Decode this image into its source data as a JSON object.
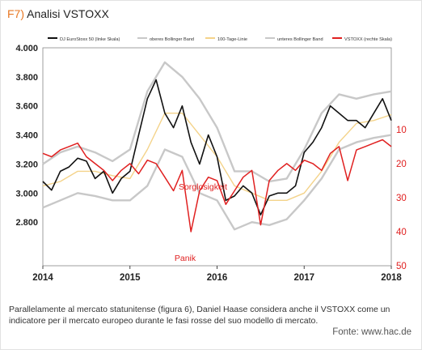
{
  "header": {
    "label": "F7)",
    "title": "Analisi VSTOXX"
  },
  "caption": "Parallelamente al mercato statunitense (figura 6), Daniel Haase considera anche il VSTOXX come un indicatore per il mercato europeo durante le fasi rosse del suo modello di mercato.",
  "source": "Fonte: www.hac.de",
  "colors": {
    "index": "#111111",
    "bollinger": "#c8c8c8",
    "ma": "#f4d38a",
    "vstoxx": "#e02020",
    "left_axis_text": "#222222",
    "right_axis_text": "#e02020"
  },
  "chart_data": {
    "type": "line",
    "legend": [
      "DJ EuroStoxx 50 (linke Skala)",
      "oberes Bollinger Band",
      "100-Tage-Linie",
      "unteres Bollinger Band",
      "VSTOXX (rechte Skala)"
    ],
    "x_ticks": [
      "2014",
      "2015",
      "2016",
      "2017",
      "2018"
    ],
    "xlim": [
      2014,
      2018
    ],
    "left_axis": {
      "ticks": [
        "4.000",
        "3.800",
        "3.600",
        "3.400",
        "3.200",
        "3.000",
        "2.800"
      ],
      "ylim": [
        2500,
        4000
      ]
    },
    "right_axis": {
      "ticks": [
        "10",
        "20",
        "30",
        "40",
        "50"
      ],
      "ylim": [
        -14,
        50
      ],
      "inverted": true
    },
    "annotations": [
      "Sorglosigkeit",
      "Panik"
    ],
    "series": [
      {
        "name": "DJ EuroStoxx 50 (linke Skala)",
        "axis": "left",
        "x": [
          2014.0,
          2014.1,
          2014.2,
          2014.3,
          2014.4,
          2014.5,
          2014.6,
          2014.7,
          2014.8,
          2014.9,
          2015.0,
          2015.1,
          2015.2,
          2015.3,
          2015.4,
          2015.5,
          2015.6,
          2015.7,
          2015.8,
          2015.9,
          2016.0,
          2016.1,
          2016.2,
          2016.3,
          2016.4,
          2016.5,
          2016.6,
          2016.7,
          2016.8,
          2016.9,
          2017.0,
          2017.1,
          2017.2,
          2017.3,
          2017.4,
          2017.5,
          2017.6,
          2017.7,
          2017.8,
          2017.9,
          2018.0
        ],
        "y": [
          3080,
          3020,
          3150,
          3180,
          3240,
          3220,
          3100,
          3150,
          3000,
          3100,
          3150,
          3400,
          3650,
          3780,
          3550,
          3450,
          3600,
          3350,
          3200,
          3400,
          3250,
          2950,
          2980,
          3050,
          3000,
          2850,
          2980,
          3000,
          3000,
          3050,
          3280,
          3350,
          3450,
          3600,
          3550,
          3500,
          3500,
          3450,
          3550,
          3650,
          3500
        ]
      },
      {
        "name": "oberes Bollinger Band",
        "axis": "left",
        "x": [
          2014.0,
          2014.2,
          2014.4,
          2014.6,
          2014.8,
          2015.0,
          2015.2,
          2015.4,
          2015.6,
          2015.8,
          2016.0,
          2016.2,
          2016.4,
          2016.6,
          2016.8,
          2017.0,
          2017.2,
          2017.4,
          2017.6,
          2017.8,
          2018.0
        ],
        "y": [
          3200,
          3280,
          3320,
          3280,
          3220,
          3300,
          3700,
          3900,
          3800,
          3650,
          3450,
          3150,
          3150,
          3080,
          3100,
          3300,
          3550,
          3680,
          3650,
          3680,
          3700
        ]
      },
      {
        "name": "100-Tage-Linie",
        "axis": "left",
        "x": [
          2014.0,
          2014.2,
          2014.4,
          2014.6,
          2014.8,
          2015.0,
          2015.2,
          2015.4,
          2015.6,
          2015.8,
          2016.0,
          2016.2,
          2016.4,
          2016.6,
          2016.8,
          2017.0,
          2017.2,
          2017.4,
          2017.6,
          2017.8,
          2018.0
        ],
        "y": [
          3050,
          3080,
          3150,
          3150,
          3120,
          3100,
          3300,
          3550,
          3550,
          3400,
          3250,
          3050,
          3000,
          2950,
          2950,
          3000,
          3150,
          3350,
          3480,
          3500,
          3540
        ]
      },
      {
        "name": "unteres Bollinger Band",
        "axis": "left",
        "x": [
          2014.0,
          2014.2,
          2014.4,
          2014.6,
          2014.8,
          2015.0,
          2015.2,
          2015.4,
          2015.6,
          2015.8,
          2016.0,
          2016.2,
          2016.4,
          2016.6,
          2016.8,
          2017.0,
          2017.2,
          2017.4,
          2017.6,
          2017.8,
          2018.0
        ],
        "y": [
          2900,
          2950,
          3000,
          2980,
          2950,
          2950,
          3050,
          3300,
          3250,
          3000,
          2950,
          2750,
          2800,
          2780,
          2820,
          2950,
          3100,
          3300,
          3350,
          3380,
          3400
        ]
      },
      {
        "name": "VSTOXX (rechte Skala)",
        "axis": "right",
        "x": [
          2014.0,
          2014.1,
          2014.2,
          2014.3,
          2014.4,
          2014.5,
          2014.6,
          2014.7,
          2014.8,
          2014.9,
          2015.0,
          2015.1,
          2015.2,
          2015.3,
          2015.4,
          2015.5,
          2015.6,
          2015.7,
          2015.8,
          2015.9,
          2016.0,
          2016.1,
          2016.2,
          2016.3,
          2016.4,
          2016.5,
          2016.6,
          2016.7,
          2016.8,
          2016.9,
          2017.0,
          2017.1,
          2017.2,
          2017.3,
          2017.4,
          2017.5,
          2017.6,
          2017.7,
          2017.8,
          2017.9,
          2018.0
        ],
        "y": [
          17,
          18,
          16,
          15,
          14,
          18,
          20,
          22,
          25,
          22,
          20,
          23,
          19,
          20,
          24,
          28,
          22,
          40,
          28,
          24,
          25,
          32,
          28,
          24,
          22,
          38,
          25,
          22,
          20,
          22,
          19,
          20,
          22,
          17,
          15,
          25,
          16,
          15,
          14,
          13,
          15
        ]
      }
    ]
  }
}
